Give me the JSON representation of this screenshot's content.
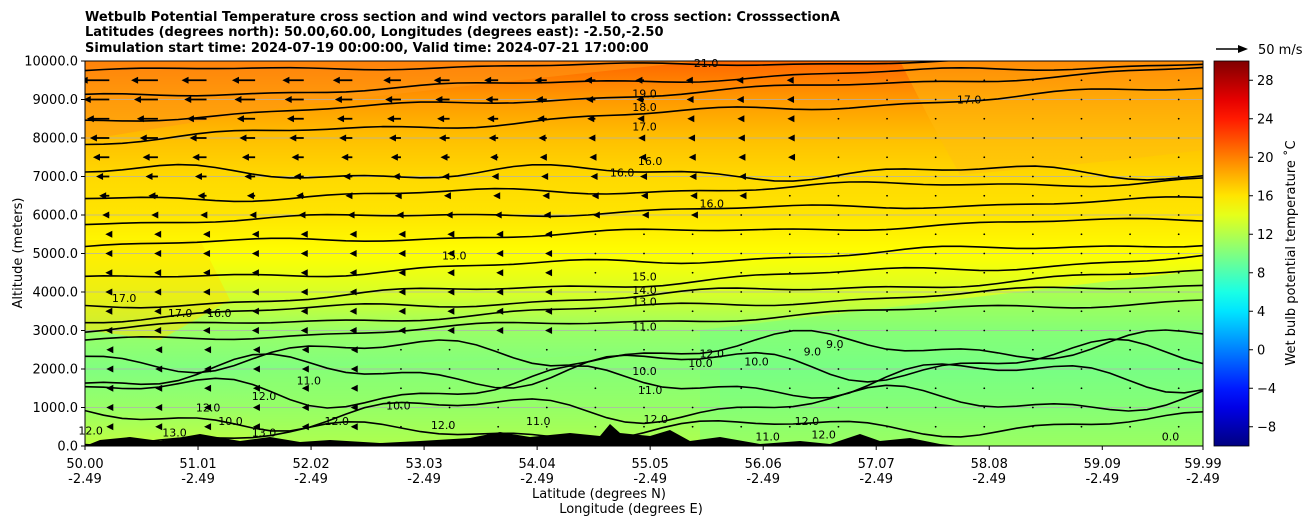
{
  "chart_data": {
    "type": "heatmap",
    "title_lines": [
      "Wetbulb Potential Temperature cross section and wind vectors parallel to cross section: CrosssectionA",
      "Latitudes (degrees north): 50.00,60.00, Longitudes (degrees east): -2.50,-2.50",
      "Simulation start time: 2024-07-19 00:00:00, Valid time: 2024-07-21 17:00:00"
    ],
    "ylabel": "Altitude (meters)",
    "xlabel_lines": [
      "Latitude (degrees N)",
      "Longitude (degrees E)"
    ],
    "x_tick_lat": [
      "50.00",
      "51.01",
      "52.02",
      "53.03",
      "54.04",
      "55.05",
      "56.06",
      "57.07",
      "58.08",
      "59.09",
      "59.99"
    ],
    "x_tick_lon": [
      "-2.49",
      "-2.49",
      "-2.49",
      "-2.49",
      "-2.49",
      "-2.49",
      "-2.49",
      "-2.49",
      "-2.49",
      "-2.49",
      "-2.49"
    ],
    "x_tick_values": [
      50.0,
      51.01,
      52.02,
      53.03,
      54.04,
      55.05,
      56.06,
      57.07,
      58.08,
      59.09,
      59.99
    ],
    "xlim": [
      50.0,
      59.99
    ],
    "y_ticks": [
      "0.0",
      "1000.0",
      "2000.0",
      "3000.0",
      "4000.0",
      "5000.0",
      "6000.0",
      "7000.0",
      "8000.0",
      "9000.0",
      "10000.0"
    ],
    "y_tick_values": [
      0,
      1000,
      2000,
      3000,
      4000,
      5000,
      6000,
      7000,
      8000,
      9000,
      10000
    ],
    "ylim": [
      0,
      10000
    ],
    "grid": "horizontal",
    "colorbar": {
      "label": "Wet bulb potential temperature ˚C",
      "ticks": [
        "−8",
        "−4",
        "0",
        "4",
        "8",
        "12",
        "16",
        "20",
        "24",
        "28"
      ],
      "tick_values": [
        -8,
        -4,
        0,
        4,
        8,
        12,
        16,
        20,
        24,
        28
      ],
      "range": [
        -10,
        30
      ],
      "colormap": "jet"
    },
    "quiver_key": "50 m/s",
    "field_profile": {
      "altitude": [
        0,
        1000,
        2000,
        3000,
        4000,
        5000,
        6000,
        7000,
        8000,
        9000,
        10000
      ],
      "temperature": [
        12.5,
        11.0,
        10.0,
        11.0,
        13.5,
        15.0,
        16.0,
        16.5,
        17.5,
        19.0,
        21.0
      ]
    },
    "contour_levels": [
      9.0,
      10.0,
      11.0,
      12.0,
      13.0,
      14.0,
      15.0,
      16.0,
      17.0,
      18.0,
      19.0,
      21.0
    ],
    "contour_labels": [
      {
        "text": "21.0",
        "lat": 55.55,
        "alt": 9950
      },
      {
        "text": "19.0",
        "lat": 55.0,
        "alt": 9150
      },
      {
        "text": "18.0",
        "lat": 55.0,
        "alt": 8800
      },
      {
        "text": "17.0",
        "lat": 55.0,
        "alt": 8300
      },
      {
        "text": "17.0",
        "lat": 57.9,
        "alt": 9000
      },
      {
        "text": "16.0",
        "lat": 54.8,
        "alt": 7100
      },
      {
        "text": "16.0",
        "lat": 55.05,
        "alt": 7400
      },
      {
        "text": "16.0",
        "lat": 55.6,
        "alt": 6300
      },
      {
        "text": "15.0",
        "lat": 53.3,
        "alt": 4950
      },
      {
        "text": "15.0",
        "lat": 55.0,
        "alt": 4400
      },
      {
        "text": "14.0",
        "lat": 55.0,
        "alt": 4050
      },
      {
        "text": "13.0",
        "lat": 55.0,
        "alt": 3750
      },
      {
        "text": "11.0",
        "lat": 55.0,
        "alt": 3100
      },
      {
        "text": "17.0",
        "lat": 50.35,
        "alt": 3850
      },
      {
        "text": "17.0",
        "lat": 50.85,
        "alt": 3450
      },
      {
        "text": "16.0",
        "lat": 51.2,
        "alt": 3450
      },
      {
        "text": "12.0",
        "lat": 55.6,
        "alt": 2400
      },
      {
        "text": "10.0",
        "lat": 55.5,
        "alt": 2150
      },
      {
        "text": "10.0",
        "lat": 56.0,
        "alt": 2200
      },
      {
        "text": "10.0",
        "lat": 55.0,
        "alt": 1950
      },
      {
        "text": "11.0",
        "lat": 55.05,
        "alt": 1450
      },
      {
        "text": "12.0",
        "lat": 51.6,
        "alt": 1300
      },
      {
        "text": "12.0",
        "lat": 51.1,
        "alt": 1000
      },
      {
        "text": "11.0",
        "lat": 52.0,
        "alt": 1700
      },
      {
        "text": "10.0",
        "lat": 51.3,
        "alt": 650
      },
      {
        "text": "12.0",
        "lat": 52.25,
        "alt": 650
      },
      {
        "text": "10.0",
        "lat": 52.8,
        "alt": 1050
      },
      {
        "text": "12.0",
        "lat": 53.2,
        "alt": 550
      },
      {
        "text": "12.0",
        "lat": 50.05,
        "alt": 400
      },
      {
        "text": "13.0",
        "lat": 50.8,
        "alt": 350
      },
      {
        "text": "13.0",
        "lat": 51.6,
        "alt": 350
      },
      {
        "text": "11.0",
        "lat": 54.05,
        "alt": 650
      },
      {
        "text": "12.0",
        "lat": 55.1,
        "alt": 700
      },
      {
        "text": "12.0",
        "lat": 56.45,
        "alt": 650
      },
      {
        "text": "9.0",
        "lat": 56.5,
        "alt": 2450
      },
      {
        "text": "9.0",
        "lat": 56.7,
        "alt": 2650
      },
      {
        "text": "11.0",
        "lat": 56.1,
        "alt": 250
      },
      {
        "text": "12.0",
        "lat": 56.6,
        "alt": 300
      },
      {
        "text": "0.0",
        "lat": 59.7,
        "alt": 250
      }
    ]
  }
}
